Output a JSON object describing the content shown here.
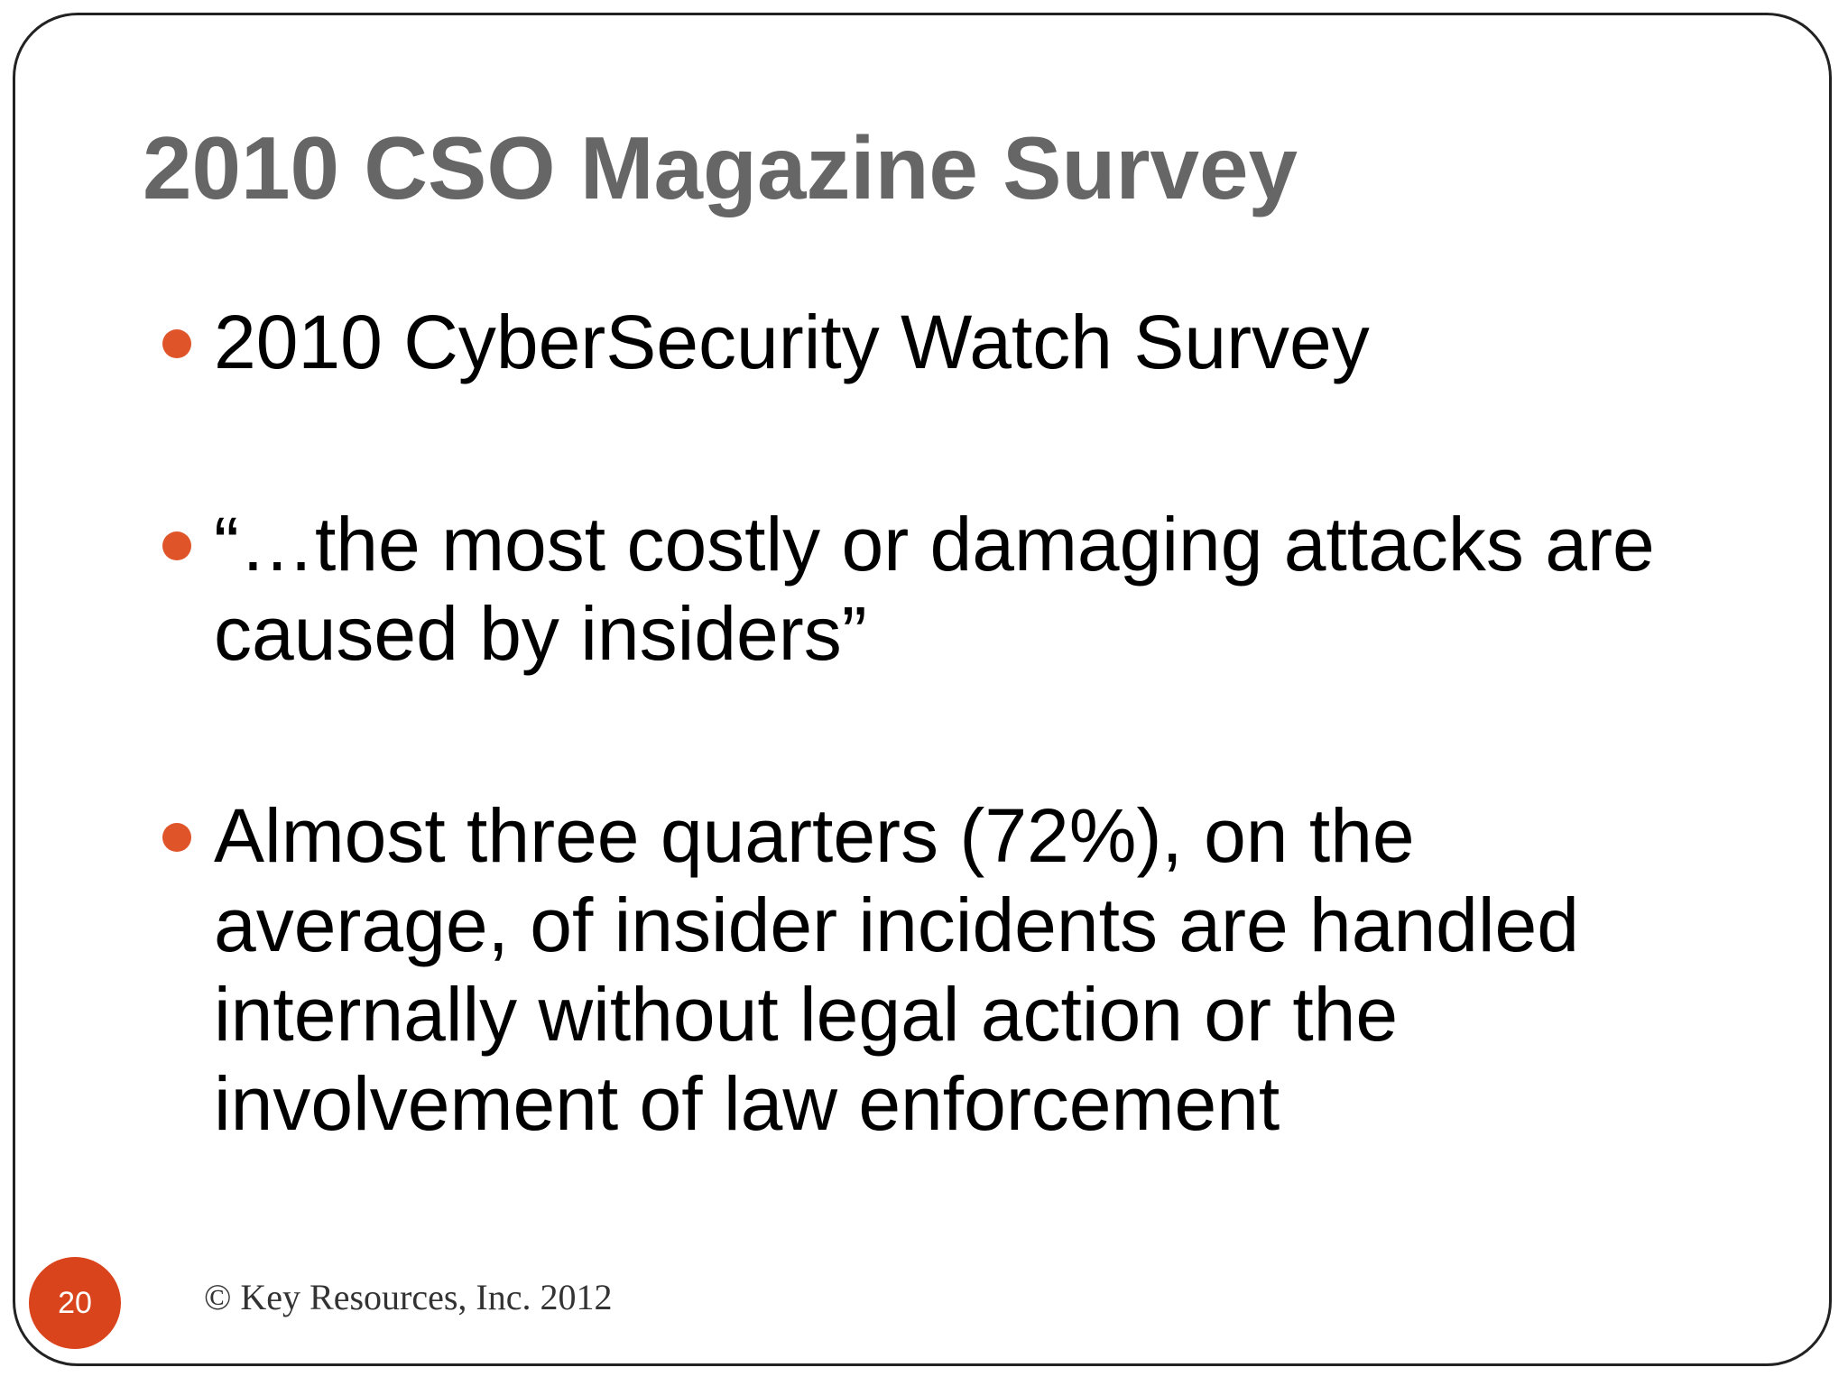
{
  "slide": {
    "title": "2010 CSO Magazine Survey",
    "bullets": [
      {
        "text": "2010 CyberSecurity Watch Survey"
      },
      {
        "text": "“…the most costly or damaging attacks are caused by insiders”"
      },
      {
        "text": "Almost three quarters (72%), on the average, of insider incidents are handled internally without legal action or the involvement of law enforcement"
      }
    ],
    "footer": {
      "copyright": "© Key Resources, Inc. 2012",
      "slide_number": "20"
    },
    "colors": {
      "title": "#666666",
      "bullet_accent": "#e0542a",
      "badge": "#d9441c",
      "frame_border": "#222222"
    },
    "icons": {
      "bullet": "bullet-dot-icon"
    }
  }
}
